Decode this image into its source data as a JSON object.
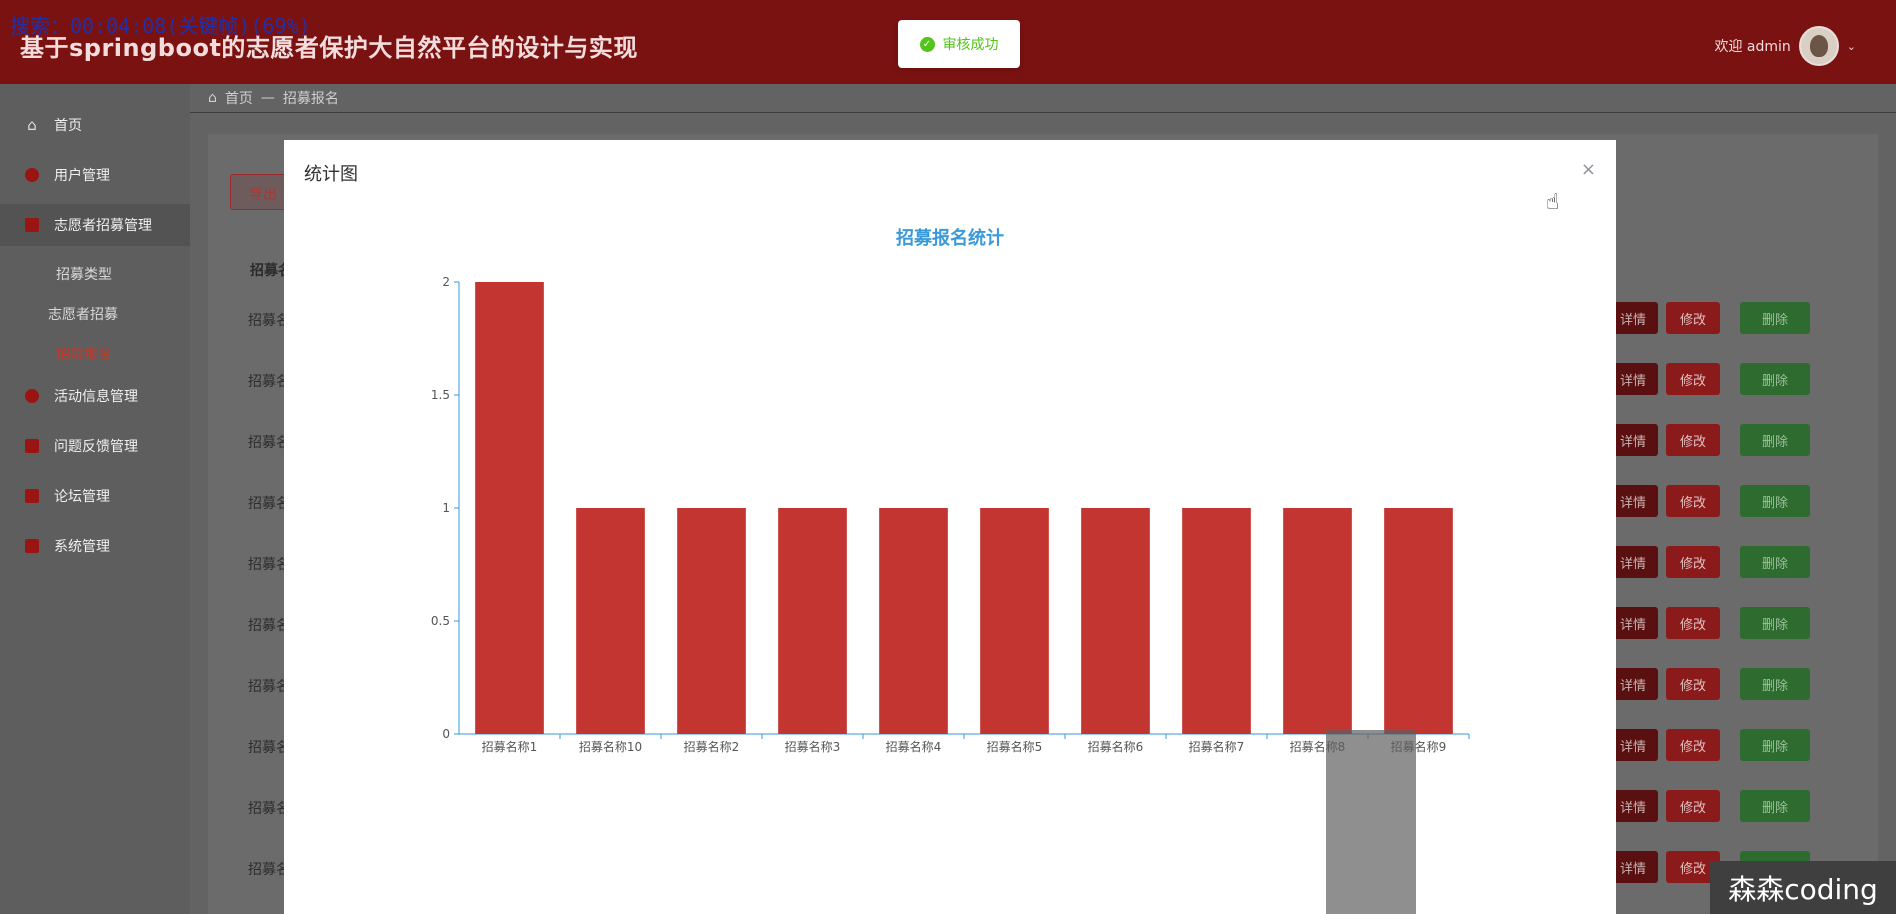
{
  "overlay": {
    "search_text": "搜索：00:04:08(关键帧)(69%)"
  },
  "header": {
    "title": "基于springboot的志愿者保护大自然平台的设计与实现",
    "welcome": "欢迎 admin",
    "avatar_icon": "avatar-icon",
    "dropdown_icon": "chevron-down-icon"
  },
  "toast": {
    "message": "审核成功",
    "icon": "check-circle-icon",
    "color": "#52c41a"
  },
  "sidebar": {
    "items": [
      {
        "label": "首页",
        "icon": "home-icon"
      },
      {
        "label": "用户管理",
        "icon": "user-icon"
      },
      {
        "label": "志愿者招募管理",
        "icon": "volunteer-icon"
      },
      {
        "label": "活动信息管理",
        "icon": "activity-icon"
      },
      {
        "label": "问题反馈管理",
        "icon": "feedback-icon"
      },
      {
        "label": "论坛管理",
        "icon": "forum-icon"
      },
      {
        "label": "系统管理",
        "icon": "settings-icon"
      }
    ],
    "subitems": [
      {
        "label": "招募类型"
      },
      {
        "label": "志愿者招募"
      },
      {
        "label": "招募报名"
      }
    ]
  },
  "breadcrumb": {
    "home": "首页",
    "separator": "—",
    "current": "招募报名"
  },
  "table": {
    "export_label": "导出",
    "first_column_header": "招募名",
    "row_label": "招募名",
    "detail_label": "详情",
    "edit_label": "修改",
    "delete_label": "删除",
    "rows": 10
  },
  "modal": {
    "title": "统计图",
    "close_icon": "close-icon"
  },
  "chart_data": {
    "type": "bar",
    "title": "招募报名统计",
    "categories": [
      "招募名称1",
      "招募名称10",
      "招募名称2",
      "招募名称3",
      "招募名称4",
      "招募名称5",
      "招募名称6",
      "招募名称7",
      "招募名称8",
      "招募名称9"
    ],
    "values": [
      2,
      1,
      1,
      1,
      1,
      1,
      1,
      1,
      1,
      1
    ],
    "ylim": [
      0,
      2
    ],
    "yticks": [
      0,
      0.5,
      1,
      1.5,
      2
    ],
    "xlabel": "",
    "ylabel": "",
    "bar_color": "#c23531",
    "title_color": "#3a9ad9",
    "grid": false
  },
  "watermark": "森森coding"
}
